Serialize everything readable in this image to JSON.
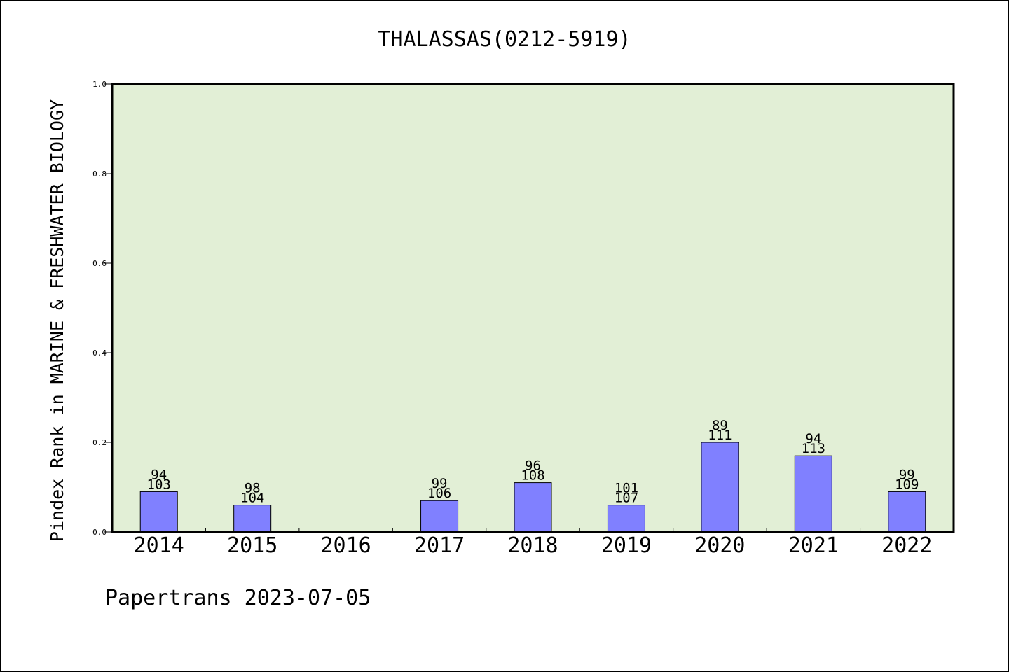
{
  "chart_data": {
    "type": "bar",
    "title": "THALASSAS(0212-5919)",
    "ylabel": "Pindex Rank in MARINE & FRESHWATER BIOLOGY",
    "xlabel": "",
    "categories": [
      "2014",
      "2015",
      "2016",
      "2017",
      "2018",
      "2019",
      "2020",
      "2021",
      "2022"
    ],
    "values": [
      0.09,
      0.06,
      null,
      0.07,
      0.11,
      0.06,
      0.2,
      0.17,
      0.09
    ],
    "bar_labels": [
      [
        "94",
        "103"
      ],
      [
        "98",
        "104"
      ],
      null,
      [
        "99",
        "106"
      ],
      [
        "96",
        "108"
      ],
      [
        "101",
        "107"
      ],
      [
        "89",
        "111"
      ],
      [
        "94",
        "113"
      ],
      [
        "99",
        "109"
      ]
    ],
    "ylim": [
      0,
      1.0
    ],
    "yticks": [
      "0.0",
      "0.2",
      "0.4",
      "0.6",
      "0.8",
      "1.0"
    ],
    "grid": false,
    "legend": "none",
    "colors": {
      "bar": "#8080ff",
      "plot_background": "#e2efd6",
      "frame": "#000000"
    }
  },
  "footer": {
    "text": "Papertrans 2023-07-05"
  }
}
